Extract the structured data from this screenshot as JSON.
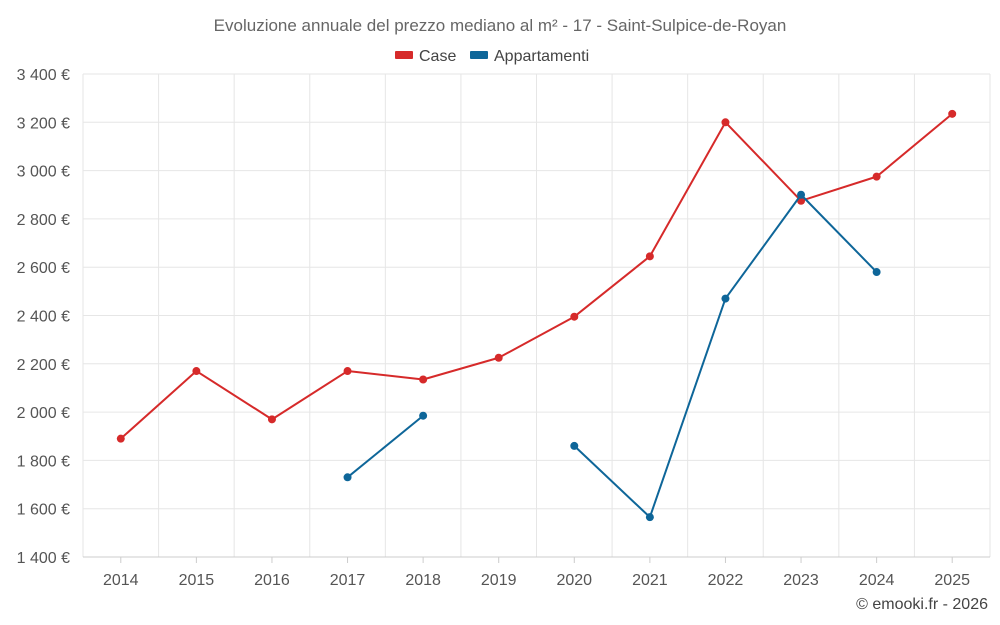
{
  "chart_data": {
    "type": "line",
    "title": "Evoluzione annuale del prezzo mediano al m² - 17 - Saint-Sulpice-de-Royan",
    "x": [
      "2014",
      "2015",
      "2016",
      "2017",
      "2018",
      "2019",
      "2020",
      "2021",
      "2022",
      "2023",
      "2024",
      "2025"
    ],
    "ylim": [
      1400,
      3400
    ],
    "yticks": [
      1400,
      1600,
      1800,
      2000,
      2200,
      2400,
      2600,
      2800,
      3000,
      3200,
      3400
    ],
    "ytick_labels": [
      "1 400 €",
      "1 600 €",
      "1 800 €",
      "2 000 €",
      "2 200 €",
      "2 400 €",
      "2 600 €",
      "2 800 €",
      "3 000 €",
      "3 200 €",
      "3 400 €"
    ],
    "legend_position": "top-center",
    "grid": true,
    "series": [
      {
        "name": "Case",
        "color": "#d62a2a",
        "values": [
          1890,
          2170,
          1970,
          2170,
          2135,
          2225,
          2395,
          2645,
          3200,
          2875,
          2975,
          3235
        ]
      },
      {
        "name": "Appartamenti",
        "color": "#0e6699",
        "values": [
          null,
          null,
          null,
          1730,
          1985,
          null,
          1860,
          1565,
          2470,
          2900,
          2580,
          null
        ]
      }
    ]
  },
  "credit": "© emooki.fr - 2026"
}
